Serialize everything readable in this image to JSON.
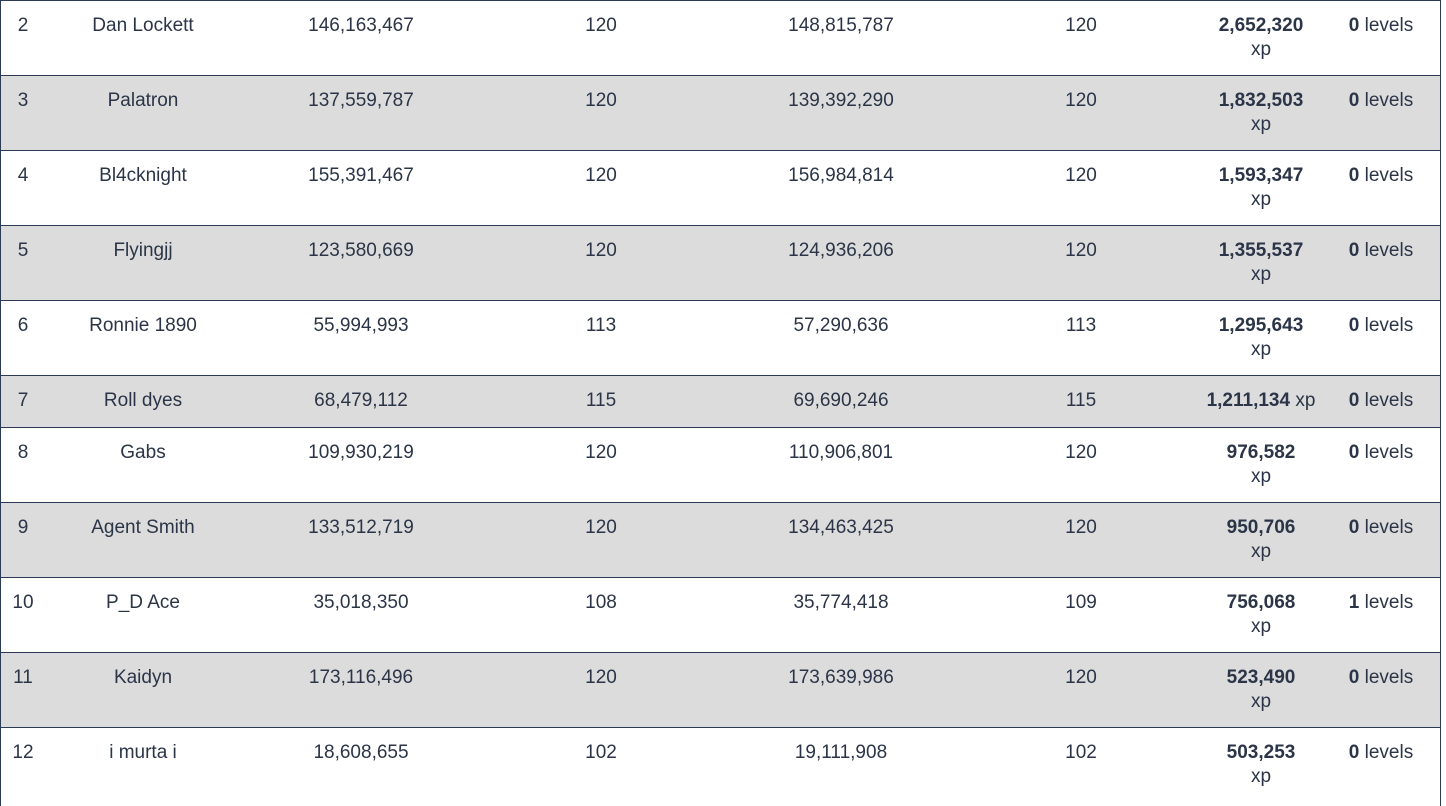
{
  "rows": [
    {
      "rank": "2",
      "name": "Dan Lockett",
      "start_xp": "146,163,467",
      "start_level": "120",
      "end_xp": "148,815,787",
      "end_level": "120",
      "gained": "2,652,320",
      "gained_unit": "xp",
      "levels": "0",
      "levels_unit": "levels"
    },
    {
      "rank": "3",
      "name": "Palatron",
      "start_xp": "137,559,787",
      "start_level": "120",
      "end_xp": "139,392,290",
      "end_level": "120",
      "gained": "1,832,503",
      "gained_unit": "xp",
      "levels": "0",
      "levels_unit": "levels"
    },
    {
      "rank": "4",
      "name": "Bl4cknight",
      "start_xp": "155,391,467",
      "start_level": "120",
      "end_xp": "156,984,814",
      "end_level": "120",
      "gained": "1,593,347",
      "gained_unit": "xp",
      "levels": "0",
      "levels_unit": "levels"
    },
    {
      "rank": "5",
      "name": "Flyingjj",
      "start_xp": "123,580,669",
      "start_level": "120",
      "end_xp": "124,936,206",
      "end_level": "120",
      "gained": "1,355,537",
      "gained_unit": "xp",
      "levels": "0",
      "levels_unit": "levels"
    },
    {
      "rank": "6",
      "name": "Ronnie 1890",
      "start_xp": "55,994,993",
      "start_level": "113",
      "end_xp": "57,290,636",
      "end_level": "113",
      "gained": "1,295,643",
      "gained_unit": "xp",
      "levels": "0",
      "levels_unit": "levels"
    },
    {
      "rank": "7",
      "name": "Roll dyes",
      "start_xp": "68,479,112",
      "start_level": "115",
      "end_xp": "69,690,246",
      "end_level": "115",
      "gained": "1,211,134",
      "gained_unit": "xp",
      "levels": "0",
      "levels_unit": "levels"
    },
    {
      "rank": "8",
      "name": "Gabs",
      "start_xp": "109,930,219",
      "start_level": "120",
      "end_xp": "110,906,801",
      "end_level": "120",
      "gained": "976,582",
      "gained_unit": "xp",
      "levels": "0",
      "levels_unit": "levels"
    },
    {
      "rank": "9",
      "name": "Agent Smith",
      "start_xp": "133,512,719",
      "start_level": "120",
      "end_xp": "134,463,425",
      "end_level": "120",
      "gained": "950,706",
      "gained_unit": "xp",
      "levels": "0",
      "levels_unit": "levels"
    },
    {
      "rank": "10",
      "name": "P_D Ace",
      "start_xp": "35,018,350",
      "start_level": "108",
      "end_xp": "35,774,418",
      "end_level": "109",
      "gained": "756,068",
      "gained_unit": "xp",
      "levels": "1",
      "levels_unit": "levels"
    },
    {
      "rank": "11",
      "name": "Kaidyn",
      "start_xp": "173,116,496",
      "start_level": "120",
      "end_xp": "173,639,986",
      "end_level": "120",
      "gained": "523,490",
      "gained_unit": "xp",
      "levels": "0",
      "levels_unit": "levels"
    },
    {
      "rank": "12",
      "name": "i murta i",
      "start_xp": "18,608,655",
      "start_level": "102",
      "end_xp": "19,111,908",
      "end_level": "102",
      "gained": "503,253",
      "gained_unit": "xp",
      "levels": "0",
      "levels_unit": "levels"
    }
  ],
  "colors": {
    "text": "#2b3547",
    "alt_row": "#dcdcdc",
    "border": "#2c3a55"
  }
}
